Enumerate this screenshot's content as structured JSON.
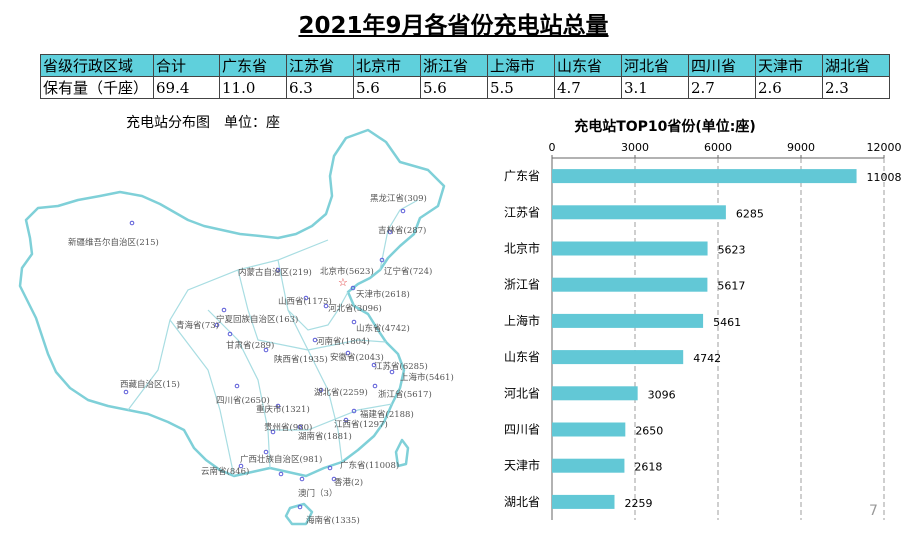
{
  "page_title": "2021年9月各省份充电站总量",
  "summary_table": {
    "header": [
      "省级行政区域",
      "合计",
      "广东省",
      "江苏省",
      "北京市",
      "浙江省",
      "上海市",
      "山东省",
      "河北省",
      "四川省",
      "天津市",
      "湖北省"
    ],
    "row": [
      "保有量（千座）",
      "69.4",
      "11.0",
      "6.3",
      "5.6",
      "5.6",
      "5.5",
      "4.7",
      "3.1",
      "2.7",
      "2.6",
      "2.3"
    ]
  },
  "map": {
    "title": "充电站分布图　单位：座",
    "colors": {
      "outline": "#7fd0d8",
      "marker": "#5a5ad8",
      "capital": "#e03030"
    },
    "labels": [
      "黑龙江省(309)",
      "吉林省(287)",
      "新疆维吾尔自治区(215)",
      "内蒙古自治区(219)",
      "北京市(5623)",
      "辽宁省(724)",
      "天津市(2618)",
      "山西省(1175)",
      "河北省(3096)",
      "宁夏回族自治区(163)",
      "青海省(73)",
      "山东省(4742)",
      "甘肃省(289)",
      "河南省(1804)",
      "陕西省(1935)",
      "安徽省(2043)",
      "江苏省(6285)",
      "上海市(5461)",
      "西藏自治区(15)",
      "湖北省(2259)",
      "浙江省(5617)",
      "四川省(2650)",
      "重庆市(1321)",
      "福建省(2188)",
      "贵州省(980)",
      "江西省(1297)",
      "湖南省(1881)",
      "广西壮族自治区(981)",
      "云南省(846)",
      "广东省(11008)",
      "香港(2)",
      "澳门（3）",
      "海南省(1335)"
    ]
  },
  "chart_data": {
    "type": "bar",
    "orientation": "horizontal",
    "title": "充电站TOP10省份(单位:座)",
    "categories": [
      "广东省",
      "江苏省",
      "北京市",
      "浙江省",
      "上海市",
      "山东省",
      "河北省",
      "四川省",
      "天津市",
      "湖北省"
    ],
    "values": [
      11008,
      6285,
      5623,
      5617,
      5461,
      4742,
      3096,
      2650,
      2618,
      2259
    ],
    "xlim": [
      0,
      12000
    ],
    "xticks": [
      0,
      3000,
      6000,
      9000,
      12000
    ],
    "axis_position": "top",
    "grid": true,
    "bar_color": "#62c8d6",
    "grid_color": "#888888"
  },
  "page_number": "7"
}
